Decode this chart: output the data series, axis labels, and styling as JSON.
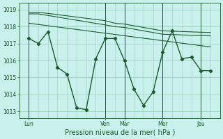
{
  "title": "",
  "xlabel": "Pression niveau de la mer( hPa )",
  "background_color": "#c8f0ec",
  "grid_color": "#99ccbb",
  "line_color": "#1a5c2a",
  "x_ticks_labels": [
    "Lun",
    "Ven",
    "Mar",
    "Mer",
    "Jeu"
  ],
  "x_ticks_pos": [
    0.5,
    4.5,
    5.5,
    7.5,
    9.5
  ],
  "xlim": [
    0,
    10.5
  ],
  "ylim": [
    1012.6,
    1019.4
  ],
  "yticks": [
    1013,
    1014,
    1015,
    1016,
    1017,
    1018,
    1019
  ],
  "main_line_x": [
    0.5,
    1.0,
    1.5,
    2.0,
    2.5,
    3.0,
    3.5,
    4.0,
    4.5,
    5.0,
    5.5,
    6.0,
    6.5,
    7.0,
    7.5,
    8.0,
    8.5,
    9.0,
    9.5,
    10.0
  ],
  "main_line_y": [
    1017.3,
    1017.0,
    1017.7,
    1015.6,
    1015.2,
    1013.2,
    1013.1,
    1016.1,
    1017.3,
    1017.3,
    1016.0,
    1014.3,
    1013.35,
    1014.15,
    1016.5,
    1017.75,
    1016.1,
    1016.2,
    1015.4,
    1015.4
  ],
  "upper_line1_x": [
    0.5,
    1.0,
    4.5,
    5.0,
    5.5,
    7.5,
    10.0
  ],
  "upper_line1_y": [
    1018.85,
    1018.85,
    1018.35,
    1018.2,
    1018.15,
    1017.75,
    1017.65
  ],
  "upper_line2_x": [
    0.5,
    1.0,
    4.5,
    5.0,
    5.5,
    7.5,
    10.0
  ],
  "upper_line2_y": [
    1018.75,
    1018.75,
    1018.1,
    1018.0,
    1017.95,
    1017.55,
    1017.45
  ],
  "trend_line_x": [
    0.5,
    10.0
  ],
  "trend_line_y": [
    1018.2,
    1016.8
  ],
  "vlines_x": [
    0.5,
    4.5,
    5.5,
    7.5,
    9.5
  ]
}
